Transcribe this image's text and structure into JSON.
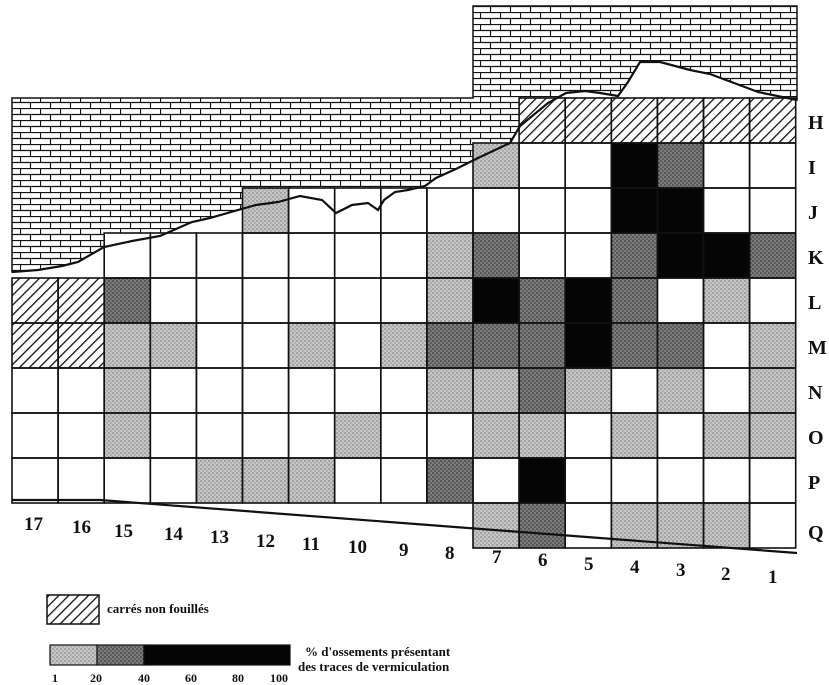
{
  "columns": [
    "17",
    "16",
    "15",
    "14",
    "13",
    "12",
    "11",
    "10",
    "9",
    "8",
    "7",
    "6",
    "5",
    "4",
    "3",
    "2",
    "1"
  ],
  "rows": [
    "H",
    "I",
    "J",
    "K",
    "L",
    "M",
    "N",
    "O",
    "P",
    "Q"
  ],
  "legend": {
    "unexcavated_label": "carrés non fouillés",
    "scale_title_line1": "% d'ossements présentant",
    "scale_title_line2": "des traces de vermiculation",
    "ticks": [
      "1",
      "20",
      "40",
      "60",
      "80",
      "100"
    ],
    "classes": [
      {
        "range": "1-20",
        "fill": "light-dots"
      },
      {
        "range": "20-40",
        "fill": "dark-dots"
      },
      {
        "range": "40-100",
        "fill": "black"
      }
    ]
  },
  "grid": {
    "legend_codes": {
      "0": "no traces / empty",
      "1": "1-20 %",
      "2": "20-40 %",
      "3": "40-100 %",
      "H": "carré non fouillé",
      "-": "outside excavation"
    },
    "cells": [
      [
        "-",
        "-",
        "-",
        "-",
        "-",
        "-",
        "-",
        "-",
        "-",
        "-",
        "-",
        "H",
        "H",
        "H",
        "H",
        "H",
        "H"
      ],
      [
        "-",
        "-",
        "-",
        "-",
        "-",
        "-",
        "-",
        "-",
        "-",
        "-",
        "1",
        "0",
        "0",
        "3",
        "2",
        "0",
        "0"
      ],
      [
        "-",
        "-",
        "-",
        "-",
        "-",
        "1",
        "0",
        "0",
        "0",
        "0",
        "0",
        "0",
        "0",
        "3",
        "3",
        "0",
        "0"
      ],
      [
        "-",
        "-",
        "0",
        "0",
        "0",
        "0",
        "0",
        "0",
        "0",
        "1",
        "2",
        "0",
        "0",
        "2",
        "3",
        "3",
        "2"
      ],
      [
        "H",
        "H",
        "2",
        "0",
        "0",
        "0",
        "0",
        "0",
        "0",
        "1",
        "3",
        "2",
        "3",
        "2",
        "0",
        "1",
        "0"
      ],
      [
        "H",
        "H",
        "1",
        "1",
        "0",
        "0",
        "1",
        "0",
        "1",
        "2",
        "2",
        "2",
        "3",
        "2",
        "2",
        "0",
        "1"
      ],
      [
        "0",
        "0",
        "1",
        "0",
        "0",
        "0",
        "0",
        "0",
        "0",
        "1",
        "1",
        "2",
        "1",
        "0",
        "1",
        "0",
        "1"
      ],
      [
        "0",
        "0",
        "1",
        "0",
        "0",
        "0",
        "0",
        "1",
        "0",
        "0",
        "1",
        "1",
        "0",
        "1",
        "0",
        "1",
        "1"
      ],
      [
        "0",
        "0",
        "0",
        "0",
        "1",
        "1",
        "1",
        "0",
        "0",
        "2",
        "0",
        "3",
        "0",
        "0",
        "0",
        "0",
        "0"
      ],
      [
        "-",
        "-",
        "-",
        "-",
        "-",
        "-",
        "-",
        "-",
        "-",
        "-",
        "1",
        "2",
        "0",
        "1",
        "1",
        "1",
        "0"
      ]
    ]
  }
}
